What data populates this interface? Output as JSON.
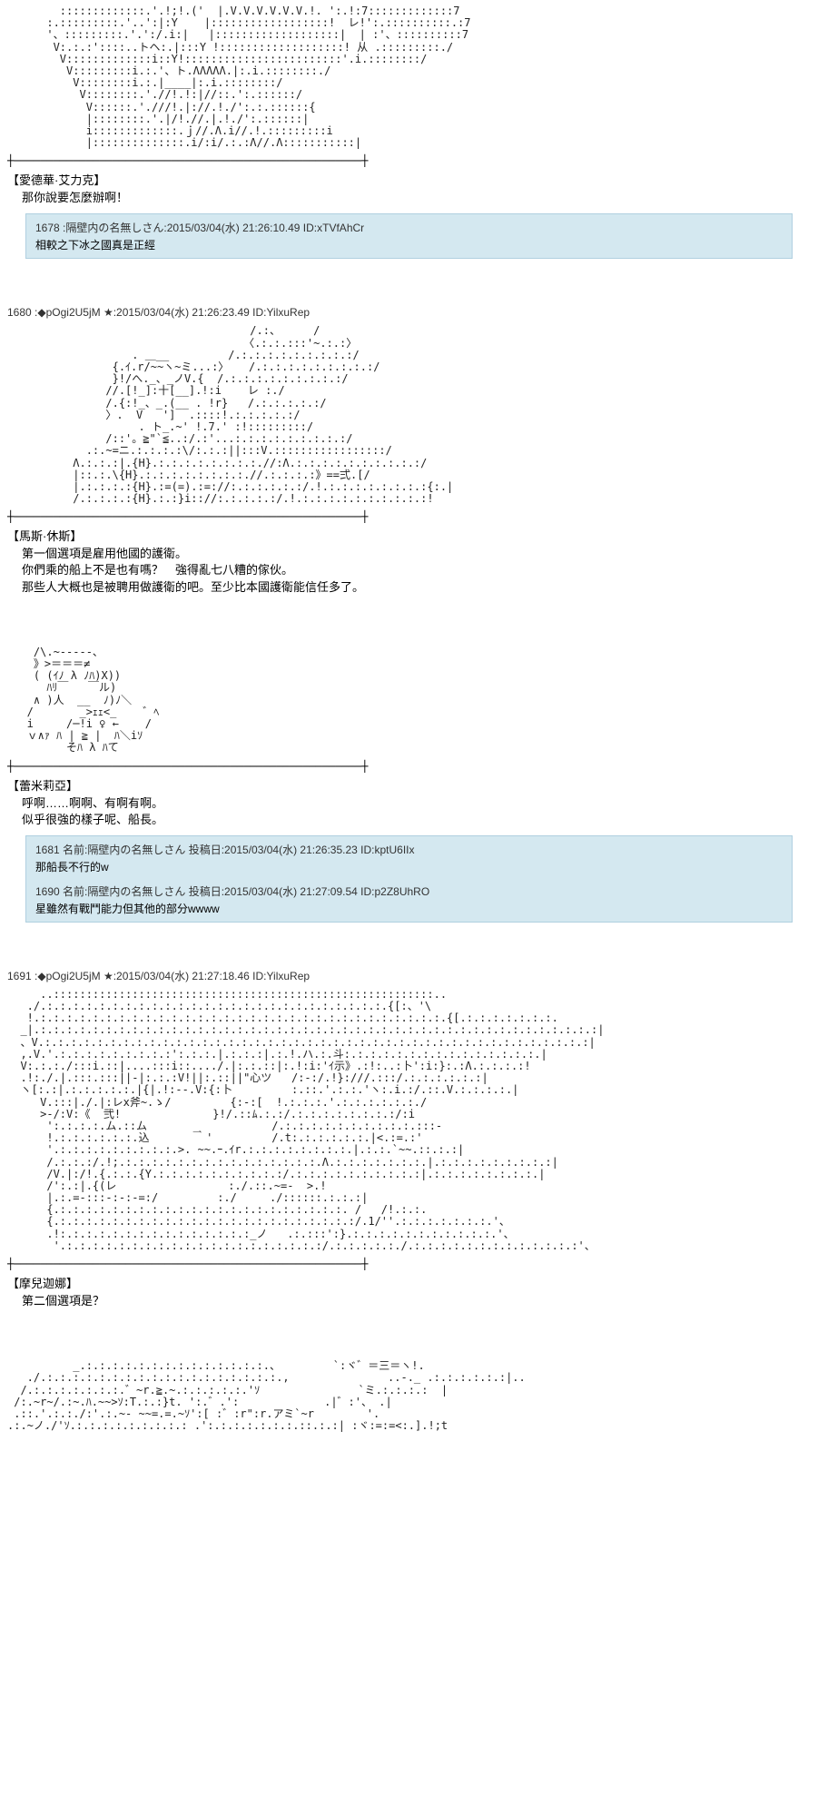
{
  "colors": {
    "background": "#ffffff",
    "text": "#000000",
    "reply_bg": "#d4e8f0",
    "reply_border": "#b0d0e0",
    "header_text": "#333333"
  },
  "posts": [
    {
      "ascii": "        :::::::::::::.'.!;!.('  |.V.V.V.V.V.V.!. ':.!:7:::::::::::::7\n      :.:::::::::.'..':|:Y    |::::::::::::::::::!  レ!':.::::::::::.:7\n      '、:::::::::.'.':/.i:|   |:::::::::::::::::::|  | :'、::::::::::7\n       V:.:.:'::::..トヘ:.|:::Y !:::::::::::::::::::! 从 .:::::::::./\n        V:::::::::::::i::Y!::::::::::::::::::::::::'.i.::::::::/\n         V:::::::::i.:.'、ト.ΛΛΛΛΛ.|:.i.::::::::./\n          V::::::::i.:.|____|:.i.::::::::/\n           V::::::::.'.//!.!:|//::.':.::::::/\n            V::::::.'.///!.|://.!./':.:.::::::{\n            |::::::::.'.|/!.//.|.!./':.::::::|\n            i:::::::::::::.ｊ//.Λ.i//.!.:::::::::i\n            |::::::::::::::.i/:i/.:.:Λ//.Λ:::::::::::|",
      "speaker": "【愛德華·艾力克】",
      "dialogue": "那你說要怎麼辦啊！",
      "replies": [
        {
          "header": "1678 :隔壁内の名無しさん:2015/03/04(水) 21:26:10.49 ID:xTVfAhCr",
          "body": "相較之下冰之國真是正經"
        }
      ]
    },
    {
      "header": "1680 :◆pOgi2U5jM ★:2015/03/04(水) 21:26:23.49 ID:YilxuRep",
      "ascii": "                                     /.:、     /\n                                    〈.:.:.:::'~.:.:〉\n                   . ＿__         /.:.:.:.:.:.:.:.:.:/\n                {.ｲ.r/~~ヽ~ミ...:〉   /.:.:.:.:.:.:.:.:.:/\n                }!/へ._、_ノV.{  /.:.:.:.:.:.:.:.:.:/\n               //.[!_]:十[__].!:i    レ :./\n               /.{:!_、_.(__ . !r}   /.:.:.:.:.:/\n               〉.  V   ']  .::::!.:.:.:.:.:/\n                    . ト_.~' !.7.' :!:::::::::/\n               /::'。≧\"`≦..:/.:'...:.:.:.:.:.:.:.:.:/\n            .:.~=ニ.:.:.:.:\\/:.:.:||:::V.:::::::::::::::::/\n          Λ.:.:.:|.{H}.:.:.:.:.:.:.:.:.//:Λ.:.:.:.:.:.:.:.:.:.:/\n          |::.:.\\{H}.:.:.:.:.:.:.:.:.//.:.:.:.:》==弍.[/\n          |.:.:.:.:{H}.:=(=).:=://:.:.:.:.:.:/.!.:.:.:.:.:.:.:.:{:.|\n          /.:.:.:.:{H}.:.:}i:://:.:.:.:.:/.!.:.:.:.:.:.:.:.:.:.:!",
      "speaker": "【馬斯·休斯】",
      "dialogue": "第一個選項是雇用他國的護衛。\n你們乘的船上不是也有嗎？　強得亂七八糟的傢伙。\n那些人大概也是被聘用做護衛的吧。至少比本國護衛能信任多了。",
      "replies": []
    },
    {
      "ascii": "    /\\.~-----、\n    》>＝＝＝≠\n    ( (ｲﾉ λ ﾉﾊ)X))\n      ﾊﾘ￣   ￣ル)\n    ∧ )人  __  ﾉ)ﾉ＼\n   /       _>ｪｪ<_    ゛ﾍ\n   i     /─!i ♀ ←    /\n   ｖ∧ｧ ﾊ | ≧ |  ﾊ＼iｿ\n         そﾊ λ ﾊて",
      "speaker": "【蕾米莉亞】",
      "dialogue": "呼啊……啊啊、有啊有啊。\n似乎很強的樣子呢、船長。",
      "replies": [
        {
          "header": "1681 名前:隔壁内の名無しさん 投稿日:2015/03/04(水) 21:26:35.23 ID:kptU6IIx",
          "body": "那船長不行的w"
        },
        {
          "header": "1690 名前:隔壁内の名無しさん 投稿日:2015/03/04(水) 21:27:09.54 ID:p2Z8UhRO",
          "body": "星雖然有戰鬥能力但其他的部分wwww"
        }
      ]
    },
    {
      "header": "1691 :◆pOgi2U5jM ★:2015/03/04(水) 21:27:18.46 ID:YilxuRep",
      "ascii": "     ..::::::::::::::::::::::::::::::::::::::::::::::::::::::::::..\n   ./.:.:.:.:.:.:.:.:.:.:.:.:.:.:.:.:.:.:.:.:.:.:.:.:.:.:.{[:、'\\\n   !.:.:.:.:.:.:.:.:.:.:.:.:.:.:.:.:.:.:.:.:.:.:.:.:.:.:.:.:.:.:.:.{[.:.:.:.:.:.:.:.\n  _|.:.:.:.:.:.:.:.:.:.:.:.:.:.:.:.:.:.:.:.:.:.:.:.:.:.:.:.:.:.:.:.:.:.:.:.:.:.:.:.:.:.:.:|\n  、V.:.:.:.:.:.:.:.:.:.:.:.:.:.:.:.:.:.:.:.:.:.:.:.:.:.:.:.:.:.:.:.:.:.:.:.:.:.:.:.:.:.:|\n  ,.V.'.:.:.:.:.:.:.:.:.:':.:.:.|.:.:.:|.:.!.ハ.:.斗:.:.:.:.:.:.:.:.:.:.:.:.:.:.:.|\n  V:.:.:./:::i.::|....:::i::..../.|:.:.::|:.!:i:'ｲ示》.:!:..:卜':i:}:.:Λ.:.:.:.:!\n  .!:./.|.:::.:::||-|:.:.:V!||:.::||\"心ツ   /:-:/.!}:///.:::/.:.:.:.:.:.:|\n  ヽ[:.:|.:.:.:.:.:.|{|.!:--.V:{:卜         :.::.'.:.:.'ヽ:.i.:/.::.V.:.:.:.:.|\n     V.:::|./.|:レx斧~.ゝ/         {:-:[  !.:.:.:.'.:.:.:.:.:.:./\n     >-/:V:《  弐!              }!/.::ﾑ.:.:/.:.:.:.:.:.:.:.:/:i\n      ':.:.:.:.ム.::ム       _           /.:.:.:.:.:.:.:.:.:.:.:::-\n      !.:.:.:.:.:.:.込       ｀'         /.t:.:.:.:.:.:.|<.:=.:'\n      '.:.:.:.:.:.:.:.:.:.>. ~~.ｰ.ｲr.:.:.:.:.:.:.:.:.|.:.:.`~~.::.:.:|\n      /.:.:.:/.!;.:.:.:.:.:.:.:.:.:.:.:.:.:.:.:.Λ.:.:.:.:.:.:.:.|.:.:.:.:.:.:.:.:.:|\n      /V.|:/!.{.:.:.{Y.:.:.:.:.:.:.:.:.:.:/.:.:.:.:.:.:.:.:.:.:|.:.:.:.:.:.:.:.:.|\n      /':.:|.{(レ                 :./.::.~=-  >.!\n      |.:.=-:::-:-:-=:/         :./     ./::::::.:.:.:|\n      {.:.:.:.:.:.:.:.:.:.:.:.:.:.:.:.:.:.:.:.:.:.:. /   /!.:.:.\n      {.:.:.:.:.:.:.:.:.:.:.:.:.:.:.:.:.:.:.:.:.:.:.:/.1/''.:.:.:.:.:.:.:.'、\n      .!:.:.:.:.:.:.:.:.:.:.:.:.:.:.:_ノ   .:.:::':}.:.:.:.:.:.:.:.:.:.:.:.'、\n       '.:.:.:.:.:.:.:.:.:.:.:.:.:.:.:.:.:.:.:.:/.:.:.:.:.:./.:.:.:.:.:.:.:.:.:.:.:.:.:'、",
      "speaker": "【摩兒迦娜】",
      "dialogue": "第二個選項是？",
      "replies": []
    },
    {
      "ascii": "          _.:.:.:.:.:.:.:.:.:.:.:.:.:.:.、        `:ヾ゛＝三＝ヽ!.\n   ./.:.:.:.:.:.:.:.:.:.:.:.:.:.:.:.:.:.:.,               ..-._ .:.:.:.:.:.:|..\n  /.:.:.:.:.:.:.:.゛~r.≧.~.:.:.:.:.:.'ｿ               `ミ.:.:.:.:  |\n /:.~r~/.:~.ﾊ.~~>ｿ:T.:.:}t. ':.゛.':             .|゛:'、 .|\n .::.'.:.:./:'.:.~- ~~=.=.~ｿ':[ :゛:r\":r.アミ`~r        '.\n.:.~ノ./'ｿ.:.:.:.:.:.:.:.:.: .':.:.:.:.:.:.:.::.:.:| :ヾ:=:=<:.].!;t",
      "replies": []
    }
  ],
  "divider_line": "┼─────────────────────────────────────────────────────┼"
}
